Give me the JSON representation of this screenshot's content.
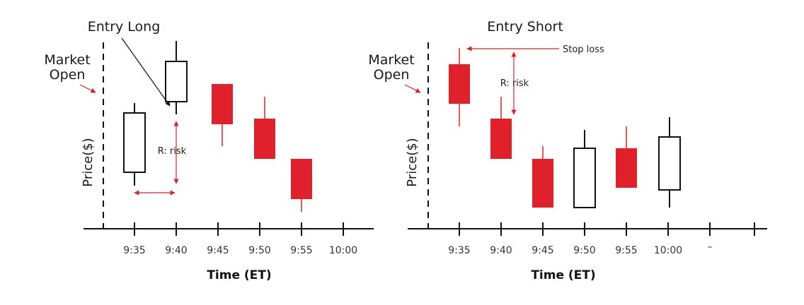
{
  "colors": {
    "bearish": "#e0202a",
    "bullish": "#ffffff",
    "ink": "#111111",
    "accent": "#d8252c"
  },
  "left_panel": {
    "title": "Entry Long",
    "market_open": [
      "Market",
      "Open"
    ],
    "ylabel": "Price($)",
    "xlabel": "Time (ET)",
    "risk_label": "R: risk",
    "ticks": [
      "9:35",
      "9:40",
      "9:45",
      "9:50",
      "9:55",
      "10:00"
    ]
  },
  "right_panel": {
    "title": "Entry Short",
    "market_open": [
      "Market",
      "Open"
    ],
    "ylabel": "Price($)",
    "xlabel": "Time (ET)",
    "risk_label": "R: risk",
    "stop_label": "Stop loss",
    "ticks": [
      "9:35",
      "9:40",
      "9:45",
      "9:50",
      "9:55",
      "10:00",
      "–"
    ]
  }
}
